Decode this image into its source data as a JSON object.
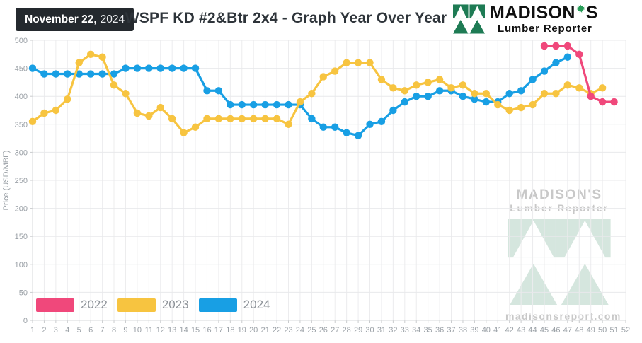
{
  "header": {
    "date_badge": {
      "date": "November 22,",
      "year": "2024"
    },
    "title": "WSPF KD #2&Btr 2x4 - Graph Year Over Year",
    "brand": {
      "name_main": "MADISON",
      "name_suffix": "S",
      "tagline": "Lumber Reporter"
    }
  },
  "watermark": {
    "name": "MADISON'S",
    "tagline": "Lumber Reporter",
    "url": "madisonsreport.com"
  },
  "colors": {
    "badge_bg": "#24292e",
    "title_text": "#2e343a",
    "brand_text": "#101010",
    "logo_green": "#1e7b54",
    "leaf_green": "#279c57",
    "legend_text": "#8e9399",
    "watermark_text": "#c8c8c8",
    "watermark_green": "#d5e6de"
  },
  "chart_data": {
    "type": "line",
    "title": "WSPF KD #2&Btr 2x4 - Graph Year Over Year",
    "xlabel": "",
    "ylabel": "Price  (USD/MBF)",
    "x_range": [
      1,
      52
    ],
    "ylim": [
      0,
      500
    ],
    "y_ticks": [
      0,
      50,
      100,
      150,
      200,
      250,
      300,
      350,
      400,
      450,
      500
    ],
    "x_ticks": [
      1,
      2,
      3,
      4,
      5,
      6,
      7,
      8,
      9,
      10,
      11,
      12,
      13,
      14,
      15,
      16,
      17,
      18,
      19,
      20,
      21,
      22,
      23,
      24,
      25,
      26,
      27,
      28,
      29,
      30,
      31,
      32,
      33,
      34,
      35,
      36,
      37,
      38,
      39,
      40,
      41,
      42,
      43,
      44,
      45,
      46,
      47,
      48,
      49,
      50,
      51,
      52
    ],
    "grid": true,
    "legend": {
      "position": "bottom-left",
      "labels": [
        "2022",
        "2023",
        "2024"
      ]
    },
    "style": {
      "grid_h": "#e8e9eb",
      "grid_v": "#ececee",
      "axis_line": "#d7d9db",
      "tick": "#c9cbcd",
      "axis_text": "#9aa0a6",
      "marker_radius": 5.2,
      "line_width": 3.2
    },
    "series": [
      {
        "name": "2022",
        "color": "#f0487b",
        "start_x": 45,
        "values": [
          490,
          490,
          490,
          475,
          400,
          390,
          390
        ]
      },
      {
        "name": "2023",
        "color": "#f7c440",
        "start_x": 1,
        "values": [
          355,
          370,
          375,
          395,
          460,
          475,
          470,
          420,
          405,
          370,
          365,
          380,
          360,
          335,
          345,
          360,
          360,
          360,
          360,
          360,
          360,
          360,
          350,
          390,
          405,
          435,
          445,
          460,
          460,
          460,
          430,
          415,
          410,
          420,
          425,
          430,
          415,
          420,
          405,
          405,
          385,
          375,
          380,
          385,
          405,
          405,
          420,
          415,
          405,
          415
        ]
      },
      {
        "name": "2024",
        "color": "#189fe4",
        "start_x": 1,
        "values": [
          450,
          440,
          440,
          440,
          440,
          440,
          440,
          440,
          450,
          450,
          450,
          450,
          450,
          450,
          450,
          410,
          410,
          385,
          385,
          385,
          385,
          385,
          385,
          385,
          360,
          345,
          345,
          335,
          330,
          350,
          355,
          375,
          390,
          400,
          400,
          410,
          410,
          400,
          395,
          390,
          390,
          405,
          410,
          430,
          445,
          460,
          470
        ]
      }
    ]
  }
}
